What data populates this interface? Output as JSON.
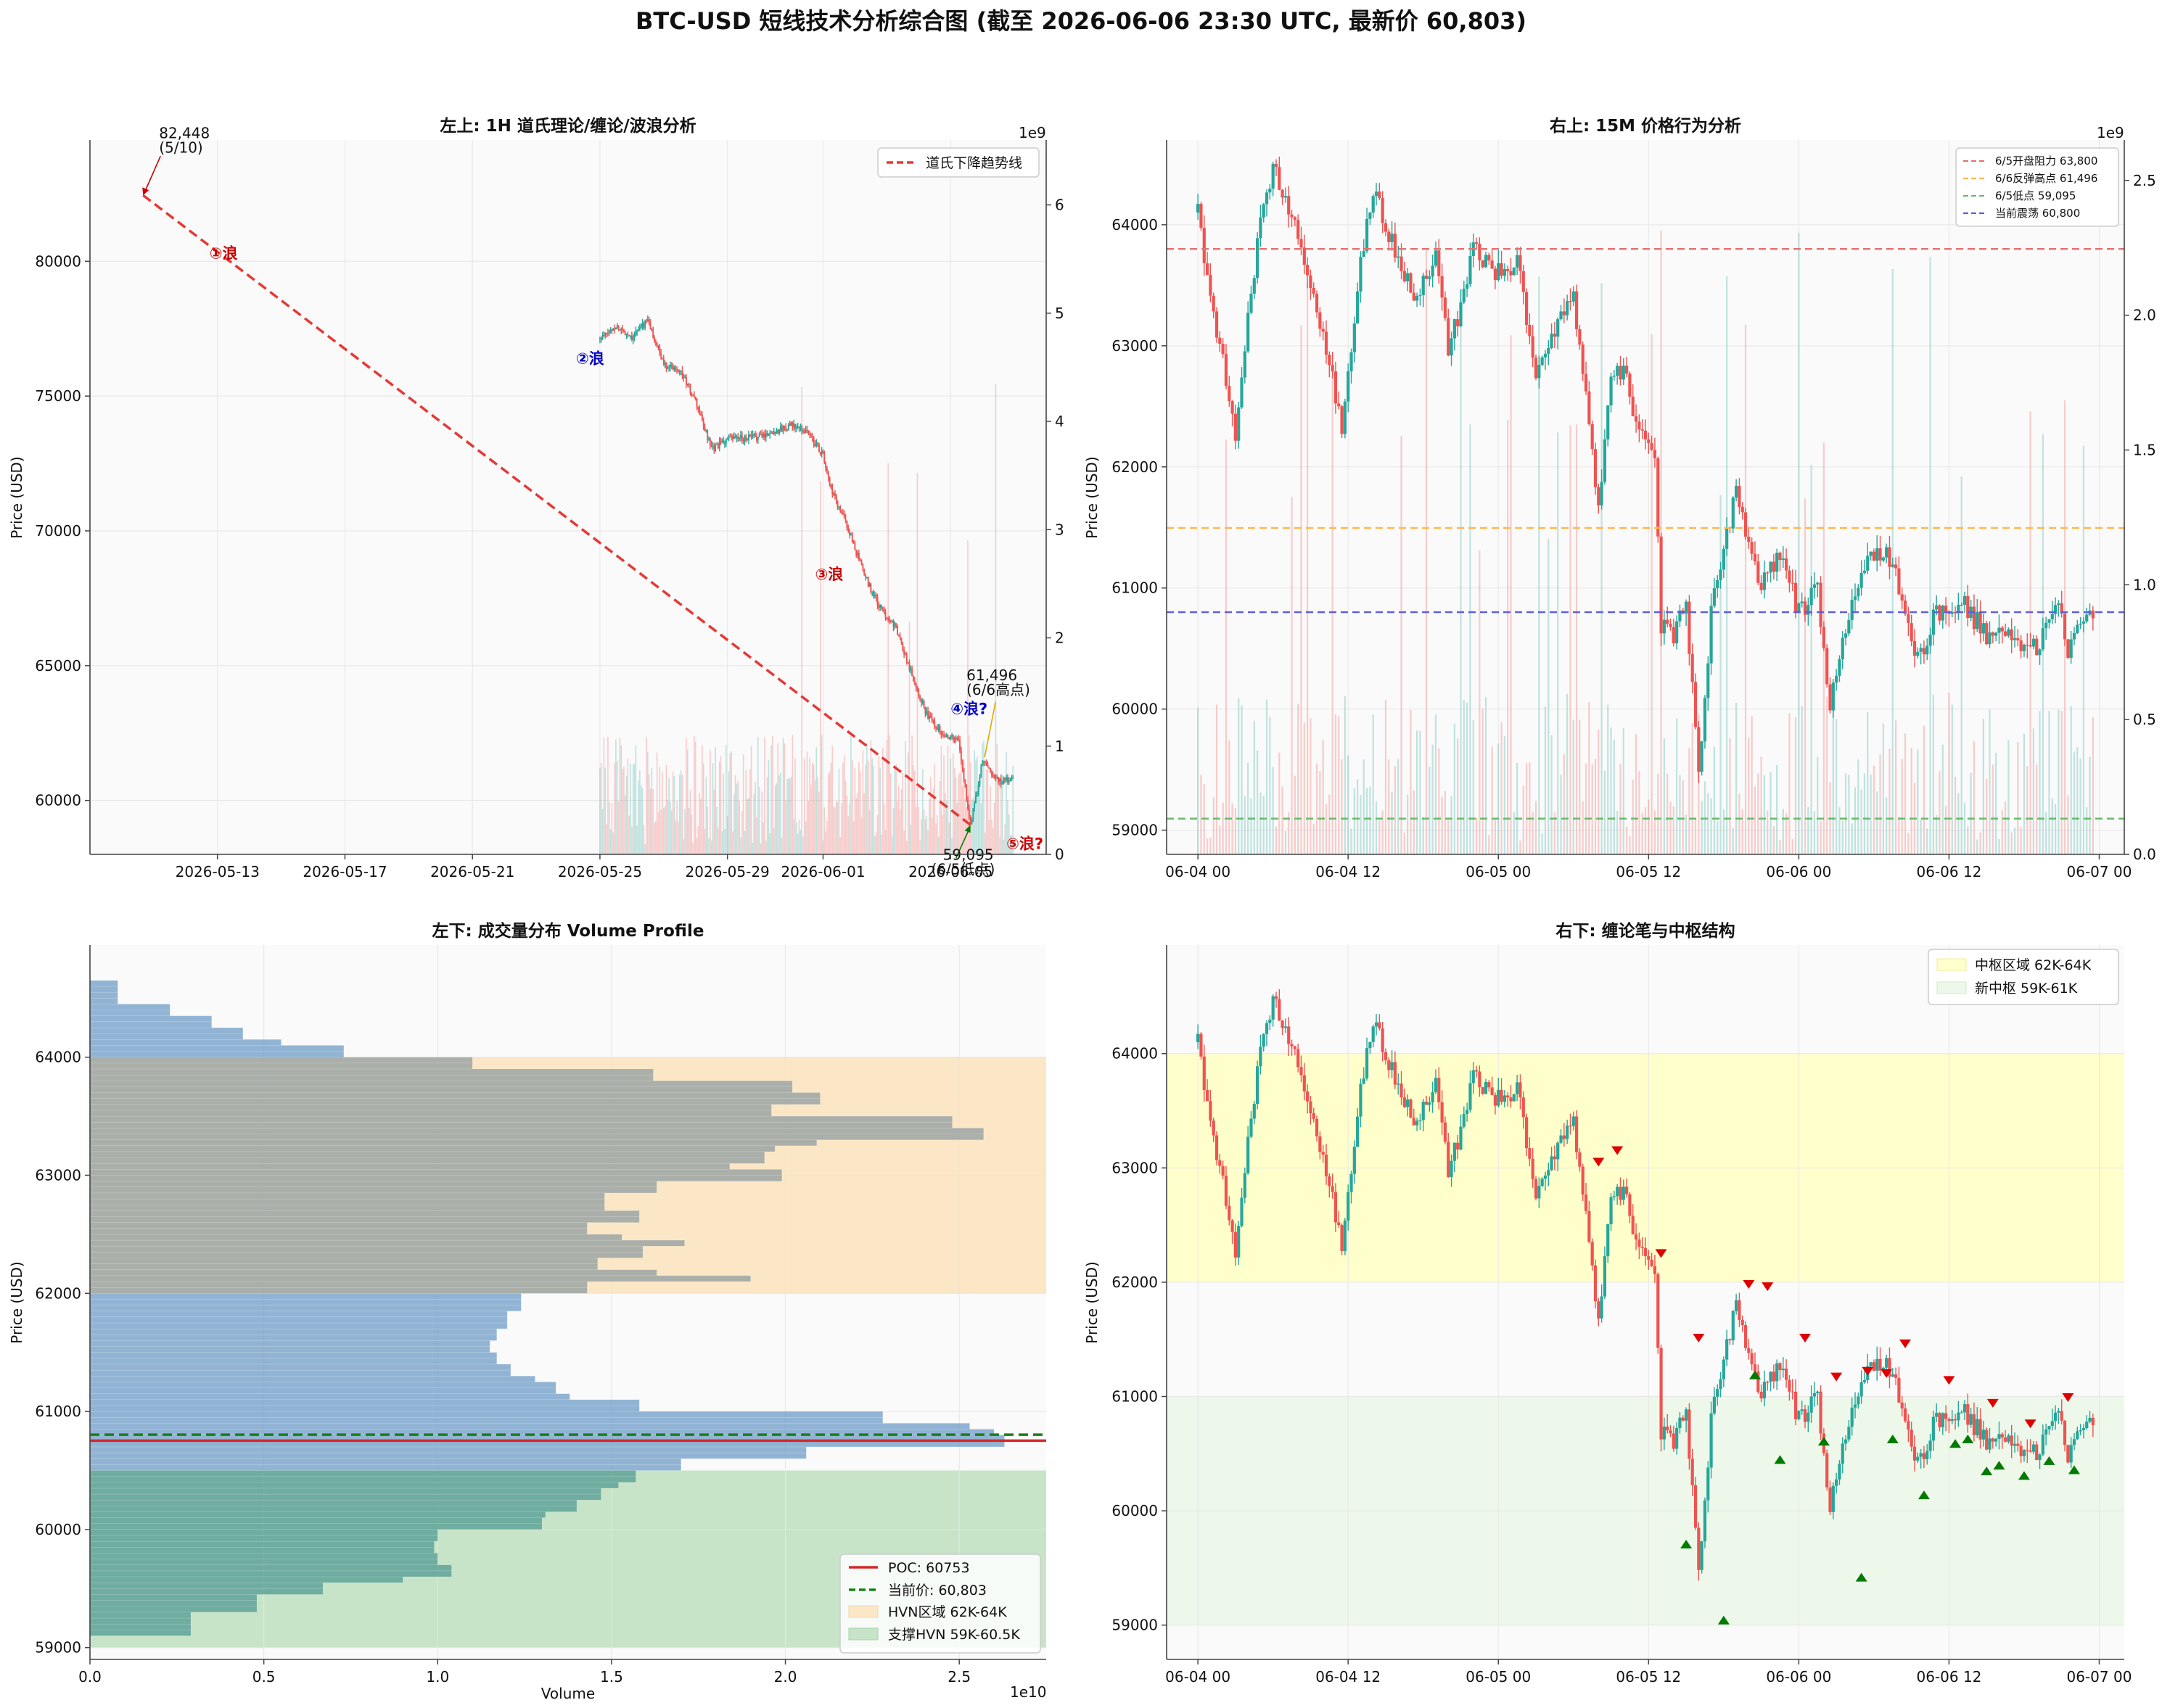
{
  "figure": {
    "title": "BTC-USD 短线技术分析综合图 (截至 2026-06-06 23:30 UTC, 最新价 60,803)",
    "colors": {
      "up": "#26a69a",
      "down": "#ef5350",
      "bg": "#fafafa",
      "grid": "#e6e6e6"
    }
  },
  "chart_data": [
    {
      "id": "tl",
      "type": "candlestick",
      "title": "左上: 1H 道氏理论/缠论/波浪分析",
      "xlabel": "",
      "ylabel": "Price (USD)",
      "ylim": [
        58000,
        84500
      ],
      "yticks": [
        60000,
        65000,
        70000,
        75000,
        80000
      ],
      "xlim": [
        "2026-05-09T00:00",
        "2026-06-08T00:00"
      ],
      "xticks": [
        "2026-05-13",
        "2026-05-17",
        "2026-05-21",
        "2026-05-25",
        "2026-05-29",
        "2026-06-01",
        "2026-06-05"
      ],
      "volume_axis": {
        "ticks": [
          0,
          1,
          2,
          3,
          4,
          5,
          6
        ],
        "ylim": [
          0,
          6.6
        ],
        "multiplier": "1e9"
      },
      "candles_interval": "1H",
      "price_path": [
        [
          "2026-05-25T00:00",
          77100
        ],
        [
          "2026-05-25T12:00",
          77600
        ],
        [
          "2026-05-26T00:00",
          77200
        ],
        [
          "2026-05-26T12:00",
          77800
        ],
        [
          "2026-05-27T00:00",
          76200
        ],
        [
          "2026-05-27T12:00",
          76000
        ],
        [
          "2026-05-28T00:00",
          74800
        ],
        [
          "2026-05-28T12:00",
          73000
        ],
        [
          "2026-05-29T00:00",
          73400
        ],
        [
          "2026-05-30T00:00",
          73500
        ],
        [
          "2026-05-31T00:00",
          73900
        ],
        [
          "2026-05-31T12:00",
          73700
        ],
        [
          "2026-06-01T00:00",
          72800
        ],
        [
          "2026-06-01T06:00",
          71500
        ],
        [
          "2026-06-01T18:00",
          70200
        ],
        [
          "2026-06-02T06:00",
          68500
        ],
        [
          "2026-06-02T18:00",
          67200
        ],
        [
          "2026-06-03T06:00",
          66500
        ],
        [
          "2026-06-03T18:00",
          64800
        ],
        [
          "2026-06-04T06:00",
          63200
        ],
        [
          "2026-06-04T18:00",
          62500
        ],
        [
          "2026-06-05T06:00",
          62200
        ],
        [
          "2026-06-05T15:00",
          59095
        ],
        [
          "2026-06-06T00:00",
          61496
        ],
        [
          "2026-06-06T12:00",
          60700
        ],
        [
          "2026-06-06T23:30",
          60803
        ]
      ],
      "trendline": {
        "label": "道氏下降趋势线",
        "from": [
          "2026-05-10T16:00",
          82448
        ],
        "to": [
          "2026-06-05T15:00",
          59095
        ],
        "color": "#e53935"
      },
      "annotations": [
        {
          "text": "82,448",
          "text2": "(5/10)",
          "color": "#cc0000"
        },
        {
          "text": "59,095",
          "text2": "(6/5低点)",
          "color": "#008000"
        },
        {
          "text": "61,496",
          "text2": "(6/6高点)",
          "color": "#e6a700"
        }
      ],
      "wave_labels": [
        {
          "text": "①浪",
          "color": "#cc0000"
        },
        {
          "text": "②浪",
          "color": "#0000cc"
        },
        {
          "text": "③浪",
          "color": "#cc0000"
        },
        {
          "text": "④浪?",
          "color": "#0000cc"
        },
        {
          "text": "⑤浪?",
          "color": "#cc0000"
        }
      ],
      "legend": [
        "道氏下降趋势线"
      ],
      "legend_position": "top-right",
      "grid": true
    },
    {
      "id": "tr",
      "type": "candlestick",
      "title": "右上: 15M 价格行为分析",
      "xlabel": "",
      "ylabel": "Price (USD)",
      "ylim": [
        58800,
        64700
      ],
      "yticks": [
        59000,
        60000,
        61000,
        62000,
        63000,
        64000
      ],
      "xlim": [
        "2026-06-03T21:30",
        "2026-06-07T02:00"
      ],
      "xticks": [
        "06-04 00",
        "06-04 12",
        "06-05 00",
        "06-05 12",
        "06-06 00",
        "06-06 12",
        "06-07 00"
      ],
      "volume_axis": {
        "ticks": [
          0.0,
          0.5,
          1.0,
          1.5,
          2.0,
          2.5
        ],
        "ylim": [
          0,
          2.65
        ],
        "multiplier": "1e9"
      },
      "candles_interval": "15M",
      "price_path": [
        [
          "2026-06-04T00:00",
          64100
        ],
        [
          "2026-06-04T01:00",
          63400
        ],
        [
          "2026-06-04T02:00",
          62900
        ],
        [
          "2026-06-04T03:00",
          62200
        ],
        [
          "2026-06-04T04:00",
          63200
        ],
        [
          "2026-06-04T05:00",
          64000
        ],
        [
          "2026-06-04T06:00",
          64500
        ],
        [
          "2026-06-04T07:30",
          64100
        ],
        [
          "2026-06-04T09:00",
          63500
        ],
        [
          "2026-06-04T10:30",
          62900
        ],
        [
          "2026-06-04T11:30",
          62300
        ],
        [
          "2026-06-04T13:00",
          63700
        ],
        [
          "2026-06-04T14:00",
          64300
        ],
        [
          "2026-06-04T16:00",
          63700
        ],
        [
          "2026-06-04T17:30",
          63400
        ],
        [
          "2026-06-04T19:00",
          63700
        ],
        [
          "2026-06-04T20:00",
          63000
        ],
        [
          "2026-06-04T21:00",
          63300
        ],
        [
          "2026-06-04T22:00",
          63800
        ],
        [
          "2026-06-05T00:00",
          63600
        ],
        [
          "2026-06-05T01:30",
          63700
        ],
        [
          "2026-06-05T03:00",
          62700
        ],
        [
          "2026-06-05T04:00",
          63000
        ],
        [
          "2026-06-05T06:00",
          63400
        ],
        [
          "2026-06-05T07:00",
          62600
        ],
        [
          "2026-06-05T08:00",
          61600
        ],
        [
          "2026-06-05T09:00",
          62700
        ],
        [
          "2026-06-05T10:00",
          62800
        ],
        [
          "2026-06-05T11:00",
          62400
        ],
        [
          "2026-06-05T12:30",
          62100
        ],
        [
          "2026-06-05T13:00",
          60700
        ],
        [
          "2026-06-05T14:00",
          60600
        ],
        [
          "2026-06-05T15:00",
          60900
        ],
        [
          "2026-06-05T16:00",
          59400
        ],
        [
          "2026-06-05T17:00",
          60800
        ],
        [
          "2026-06-05T19:00",
          61800
        ],
        [
          "2026-06-05T20:00",
          61300
        ],
        [
          "2026-06-05T21:00",
          61000
        ],
        [
          "2026-06-05T22:30",
          61300
        ],
        [
          "2026-06-06T00:00",
          60800
        ],
        [
          "2026-06-06T01:30",
          61000
        ],
        [
          "2026-06-06T02:30",
          60000
        ],
        [
          "2026-06-06T03:30",
          60600
        ],
        [
          "2026-06-06T04:30",
          61000
        ],
        [
          "2026-06-06T05:30",
          61200
        ],
        [
          "2026-06-06T07:00",
          61300
        ],
        [
          "2026-06-06T08:00",
          61000
        ],
        [
          "2026-06-06T09:30",
          60400
        ],
        [
          "2026-06-06T11:00",
          60800
        ],
        [
          "2026-06-06T13:00",
          60900
        ],
        [
          "2026-06-06T15:00",
          60600
        ],
        [
          "2026-06-06T17:00",
          60600
        ],
        [
          "2026-06-06T19:00",
          60500
        ],
        [
          "2026-06-06T20:30",
          60900
        ],
        [
          "2026-06-06T21:30",
          60500
        ],
        [
          "2026-06-06T23:30",
          60803
        ]
      ],
      "hlines": [
        {
          "label": "6/5开盘阻力 63,800",
          "value": 63800,
          "color": "#e57373"
        },
        {
          "label": "6/6反弹高点 61,496",
          "value": 61496,
          "color": "#ffb74d"
        },
        {
          "label": "6/5低点 59,095",
          "value": 59095,
          "color": "#66bb6a"
        },
        {
          "label": "当前震荡 60,800",
          "value": 60800,
          "color": "#5c5ce0"
        }
      ],
      "legend_position": "top-right",
      "grid": true
    },
    {
      "id": "bl",
      "type": "bar",
      "orientation": "horizontal",
      "title": "左下: 成交量分布 Volume Profile",
      "xlabel": "Volume",
      "ylabel": "Price (USD)",
      "x_multiplier": "1e10",
      "xlim": [
        0,
        2.75
      ],
      "xticks": [
        0.0,
        0.5,
        1.0,
        1.5,
        2.0,
        2.5
      ],
      "ylim": [
        58900,
        64950
      ],
      "yticks": [
        59000,
        60000,
        61000,
        62000,
        63000,
        64000
      ],
      "bin_size": 50,
      "bins_low": [
        [
          59100,
          0.29
        ],
        [
          59150,
          0.29
        ],
        [
          59200,
          0.29
        ],
        [
          59250,
          0.29
        ],
        [
          59300,
          0.48
        ],
        [
          59350,
          0.48
        ],
        [
          59400,
          0.48
        ],
        [
          59450,
          0.67
        ],
        [
          59500,
          0.67
        ],
        [
          59550,
          0.9
        ],
        [
          59600,
          1.04
        ],
        [
          59650,
          1.04
        ],
        [
          59700,
          1.0
        ],
        [
          59750,
          1.0
        ],
        [
          59800,
          0.99
        ],
        [
          59850,
          0.99
        ],
        [
          59900,
          1.0
        ],
        [
          59950,
          1.0
        ],
        [
          60000,
          1.3
        ],
        [
          60050,
          1.3
        ],
        [
          60100,
          1.31
        ],
        [
          60150,
          1.4
        ],
        [
          60200,
          1.4
        ],
        [
          60250,
          1.47
        ],
        [
          60300,
          1.47
        ],
        [
          60350,
          1.52
        ],
        [
          60400,
          1.57
        ],
        [
          60450,
          1.57
        ],
        [
          60500,
          1.7
        ],
        [
          60550,
          1.7
        ],
        [
          60600,
          2.06
        ],
        [
          60650,
          2.06
        ],
        [
          60700,
          2.63
        ],
        [
          60750,
          2.63
        ],
        [
          60800,
          2.6
        ],
        [
          60850,
          2.53
        ],
        [
          60900,
          2.28
        ],
        [
          60950,
          2.28
        ],
        [
          61000,
          1.58
        ],
        [
          61050,
          1.58
        ],
        [
          61100,
          1.38
        ],
        [
          61150,
          1.34
        ],
        [
          61200,
          1.34
        ],
        [
          61250,
          1.28
        ],
        [
          61300,
          1.21
        ],
        [
          61350,
          1.21
        ],
        [
          61400,
          1.17
        ],
        [
          61450,
          1.17
        ],
        [
          61500,
          1.15
        ],
        [
          61550,
          1.15
        ],
        [
          61600,
          1.17
        ],
        [
          61650,
          1.17
        ],
        [
          61700,
          1.2
        ],
        [
          61750,
          1.2
        ],
        [
          61800,
          1.2
        ],
        [
          61850,
          1.24
        ],
        [
          61900,
          1.24
        ],
        [
          61950,
          1.24
        ]
      ],
      "bins_mid": [
        [
          62000,
          1.43
        ],
        [
          62050,
          1.43
        ],
        [
          62100,
          1.9
        ],
        [
          62150,
          1.63
        ],
        [
          62200,
          1.46
        ],
        [
          62250,
          1.46
        ],
        [
          62300,
          1.59
        ],
        [
          62350,
          1.59
        ],
        [
          62400,
          1.71
        ],
        [
          62450,
          1.53
        ],
        [
          62500,
          1.43
        ],
        [
          62550,
          1.43
        ],
        [
          62600,
          1.58
        ],
        [
          62650,
          1.58
        ],
        [
          62700,
          1.48
        ],
        [
          62750,
          1.48
        ],
        [
          62800,
          1.48
        ],
        [
          62850,
          1.63
        ],
        [
          62900,
          1.63
        ],
        [
          62950,
          1.99
        ],
        [
          63000,
          1.99
        ],
        [
          63050,
          1.84
        ],
        [
          63100,
          1.94
        ],
        [
          63150,
          1.94
        ],
        [
          63200,
          1.97
        ],
        [
          63250,
          2.09
        ],
        [
          63300,
          2.57
        ],
        [
          63350,
          2.57
        ],
        [
          63400,
          2.48
        ],
        [
          63450,
          2.48
        ],
        [
          63500,
          1.96
        ],
        [
          63550,
          1.96
        ],
        [
          63600,
          2.1
        ],
        [
          63650,
          2.1
        ],
        [
          63700,
          2.02
        ],
        [
          63750,
          2.02
        ],
        [
          63800,
          1.62
        ],
        [
          63850,
          1.62
        ],
        [
          63900,
          1.1
        ],
        [
          63950,
          1.1
        ]
      ],
      "bins_high": [
        [
          64000,
          0.73
        ],
        [
          64050,
          0.73
        ],
        [
          64100,
          0.55
        ],
        [
          64150,
          0.44
        ],
        [
          64200,
          0.44
        ],
        [
          64250,
          0.35
        ],
        [
          64300,
          0.35
        ],
        [
          64350,
          0.23
        ],
        [
          64400,
          0.23
        ],
        [
          64450,
          0.08
        ],
        [
          64500,
          0.08
        ],
        [
          64550,
          0.08
        ],
        [
          64600,
          0.08
        ]
      ],
      "poc": {
        "label": "POC: 60753",
        "value": 60753,
        "color": "#d62728"
      },
      "current": {
        "label": "当前价: 60,803",
        "value": 60803,
        "color": "#1a7f1a"
      },
      "bands": [
        {
          "label": "HVN区域 62K-64K",
          "from": 62000,
          "to": 64000,
          "color": "#fbe7c6"
        },
        {
          "label": "支撑HVN 59K-60.5K",
          "from": 59000,
          "to": 60500,
          "color": "#c8e4c8"
        }
      ],
      "legend_position": "bottom-right",
      "grid": true
    },
    {
      "id": "br",
      "type": "candlestick",
      "title": "右下: 缠论笔与中枢结构",
      "xlabel": "",
      "ylabel": "Price (USD)",
      "ylim": [
        58700,
        64950
      ],
      "yticks": [
        59000,
        60000,
        61000,
        62000,
        63000,
        64000
      ],
      "xlim": [
        "2026-06-03T21:30",
        "2026-06-07T02:00"
      ],
      "xticks": [
        "06-04 00",
        "06-04 12",
        "06-05 00",
        "06-05 12",
        "06-06 00",
        "06-06 12",
        "06-07 00"
      ],
      "bands": [
        {
          "label": "中枢区域 62K-64K",
          "from": 62000,
          "to": 64000,
          "color": "#ffffcc"
        },
        {
          "label": "新中枢 59K-61K",
          "from": 59000,
          "to": 61000,
          "color": "#edf8ea"
        }
      ],
      "tops": [
        [
          "2026-06-05T08:00",
          63000
        ],
        [
          "2026-06-05T09:30",
          63100
        ],
        [
          "2026-06-05T13:00",
          62200
        ],
        [
          "2026-06-05T16:00",
          61460
        ],
        [
          "2026-06-05T20:00",
          61930
        ],
        [
          "2026-06-05T21:30",
          61910
        ],
        [
          "2026-06-06T00:30",
          61460
        ],
        [
          "2026-06-06T03:00",
          61120
        ],
        [
          "2026-06-06T05:30",
          61170
        ],
        [
          "2026-06-06T07:00",
          61150
        ],
        [
          "2026-06-06T08:30",
          61410
        ],
        [
          "2026-06-06T12:00",
          61090
        ],
        [
          "2026-06-06T15:30",
          60890
        ],
        [
          "2026-06-06T18:30",
          60710
        ],
        [
          "2026-06-06T21:30",
          60940
        ]
      ],
      "bottoms": [
        [
          "2026-06-05T15:00",
          59760
        ],
        [
          "2026-06-05T18:00",
          59095
        ],
        [
          "2026-06-05T20:30",
          61240
        ],
        [
          "2026-06-05T22:30",
          60500
        ],
        [
          "2026-06-06T02:00",
          60660
        ],
        [
          "2026-06-06T05:00",
          59470
        ],
        [
          "2026-06-06T07:30",
          60680
        ],
        [
          "2026-06-06T10:00",
          60190
        ],
        [
          "2026-06-06T12:30",
          60640
        ],
        [
          "2026-06-06T13:30",
          60680
        ],
        [
          "2026-06-06T15:00",
          60400
        ],
        [
          "2026-06-06T16:00",
          60450
        ],
        [
          "2026-06-06T18:00",
          60360
        ],
        [
          "2026-06-06T20:00",
          60490
        ],
        [
          "2026-06-06T22:00",
          60410
        ]
      ],
      "legend_position": "top-right",
      "grid": true
    }
  ]
}
